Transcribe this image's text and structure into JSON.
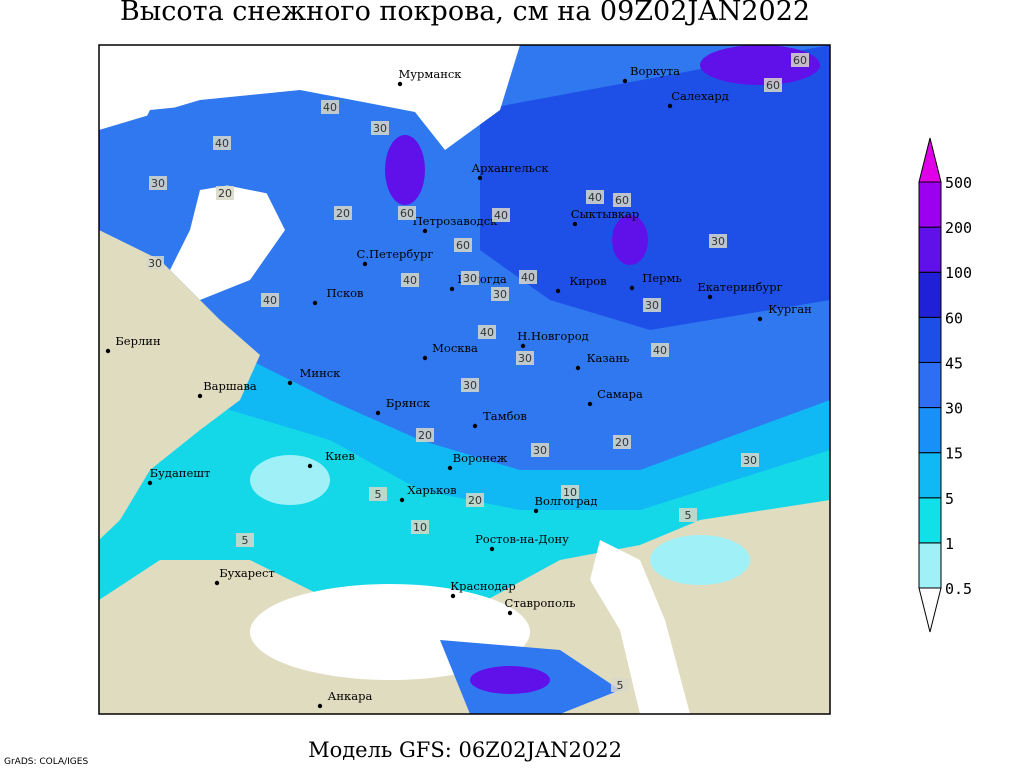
{
  "title": "Высота снежного покрова, см на 09Z02JAN2022",
  "subtitle": "Модель GFS: 06Z02JAN2022",
  "credit": "GrADS: COLA/IGES",
  "legend": {
    "levels": [
      0.5,
      1,
      5,
      15,
      30,
      45,
      60,
      100,
      200,
      500
    ],
    "colors": [
      "#ffffff",
      "#a0f0f8",
      "#10e0e8",
      "#10b8f4",
      "#1890f8",
      "#2e6ef2",
      "#1e4ee8",
      "#2020d8",
      "#6010e8",
      "#9c00f0",
      "#e000e8"
    ]
  },
  "cities": [
    "Мурманск",
    "Воркута",
    "Салехард",
    "Архангельск",
    "Петрозаводск",
    "Сыктывкар",
    "С.Петербург",
    "Вологда",
    "Киров",
    "Пермь",
    "Екатеринбург",
    "Курган",
    "Псков",
    "Н.Новгород",
    "Берлин",
    "Москва",
    "Казань",
    "Минск",
    "Варшава",
    "Самара",
    "Брянск",
    "Тамбов",
    "Киев",
    "Воронеж",
    "Будапешт",
    "Харьков",
    "Волгоград",
    "Ростов-на-Дону",
    "Бухарест",
    "Краснодар",
    "Ставрополь",
    "Анкара"
  ],
  "contour_labels": [
    40,
    30,
    40,
    30,
    20,
    20,
    30,
    40,
    60,
    40,
    40,
    60,
    30,
    60,
    40,
    30,
    40,
    30,
    30,
    40,
    30,
    20,
    40,
    30,
    30,
    20,
    10,
    5,
    5,
    20,
    10,
    5,
    5,
    30,
    60,
    60
  ]
}
